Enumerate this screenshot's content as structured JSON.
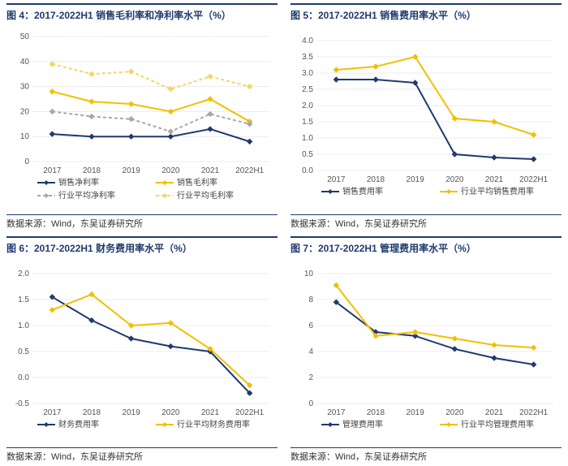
{
  "source_label": "数据来源：Wind，东吴证券研究所",
  "categories": [
    "2017",
    "2018",
    "2019",
    "2020",
    "2021",
    "2022H1"
  ],
  "colors": {
    "navy": "#1f3a6e",
    "yellow": "#f0c000",
    "gray": "#a8a8a8",
    "light_yellow": "#f6d466",
    "grid": "#d9d9d9",
    "bg": "#ffffff"
  },
  "font": {
    "title_size": 12,
    "axis_size": 10,
    "legend_size": 10
  },
  "charts": {
    "c4": {
      "title": "图 4：2017-2022H1 销售毛利率和净利率水平（%）",
      "type": "line",
      "ylim": [
        0,
        50
      ],
      "ytick_step": 10,
      "series": [
        {
          "name": "销售净利率",
          "color": "#1f3a6e",
          "dash": "none",
          "width": 2,
          "marker": "diamond",
          "values": [
            11,
            10,
            10,
            10,
            13,
            8
          ]
        },
        {
          "name": "销售毛利率",
          "color": "#f0c000",
          "dash": "none",
          "width": 2,
          "marker": "diamond",
          "values": [
            28,
            24,
            23,
            20,
            25,
            16
          ]
        },
        {
          "name": "行业平均净利率",
          "color": "#a8a8a8",
          "dash": "4,3",
          "width": 2,
          "marker": "diamond",
          "values": [
            20,
            18,
            17,
            12,
            19,
            15
          ]
        },
        {
          "name": "行业平均毛利率",
          "color": "#f6d466",
          "dash": "4,3",
          "width": 2,
          "marker": "diamond",
          "values": [
            39,
            35,
            36,
            29,
            34,
            30
          ]
        }
      ],
      "legend_cols": 2
    },
    "c5": {
      "title": "图 5：2017-2022H1 销售费用率水平（%）",
      "type": "line",
      "ylim": [
        0,
        4
      ],
      "ytick_step": 0.5,
      "series": [
        {
          "name": "销售费用率",
          "color": "#1f3a6e",
          "dash": "none",
          "width": 2,
          "marker": "diamond",
          "values": [
            2.8,
            2.8,
            2.7,
            0.5,
            0.4,
            0.35
          ]
        },
        {
          "name": "行业平均销售费用率",
          "color": "#f0c000",
          "dash": "none",
          "width": 2,
          "marker": "diamond",
          "values": [
            3.1,
            3.2,
            3.5,
            1.6,
            1.5,
            1.1
          ]
        }
      ],
      "legend_cols": 2
    },
    "c6": {
      "title": "图 6：2017-2022H1 财务费用率水平（%）",
      "type": "line",
      "ylim": [
        -0.5,
        2.0
      ],
      "ytick_step": 0.5,
      "series": [
        {
          "name": "财务费用率",
          "color": "#1f3a6e",
          "dash": "none",
          "width": 2,
          "marker": "diamond",
          "values": [
            1.55,
            1.1,
            0.75,
            0.6,
            0.5,
            -0.3
          ]
        },
        {
          "name": "行业平均财务费用率",
          "color": "#f0c000",
          "dash": "none",
          "width": 2,
          "marker": "diamond",
          "values": [
            1.3,
            1.6,
            1.0,
            1.05,
            0.55,
            -0.15
          ]
        }
      ],
      "legend_cols": 2
    },
    "c7": {
      "title": "图 7：2017-2022H1 管理费用率水平（%）",
      "type": "line",
      "ylim": [
        0,
        10
      ],
      "ytick_step": 2,
      "series": [
        {
          "name": "管理费用率",
          "color": "#1f3a6e",
          "dash": "none",
          "width": 2,
          "marker": "diamond",
          "values": [
            7.8,
            5.5,
            5.2,
            4.2,
            3.5,
            3.0
          ]
        },
        {
          "name": "行业平均管理费用率",
          "color": "#f0c000",
          "dash": "none",
          "width": 2,
          "marker": "diamond",
          "values": [
            9.1,
            5.2,
            5.5,
            5.0,
            4.5,
            4.3
          ]
        }
      ],
      "legend_cols": 2
    }
  }
}
